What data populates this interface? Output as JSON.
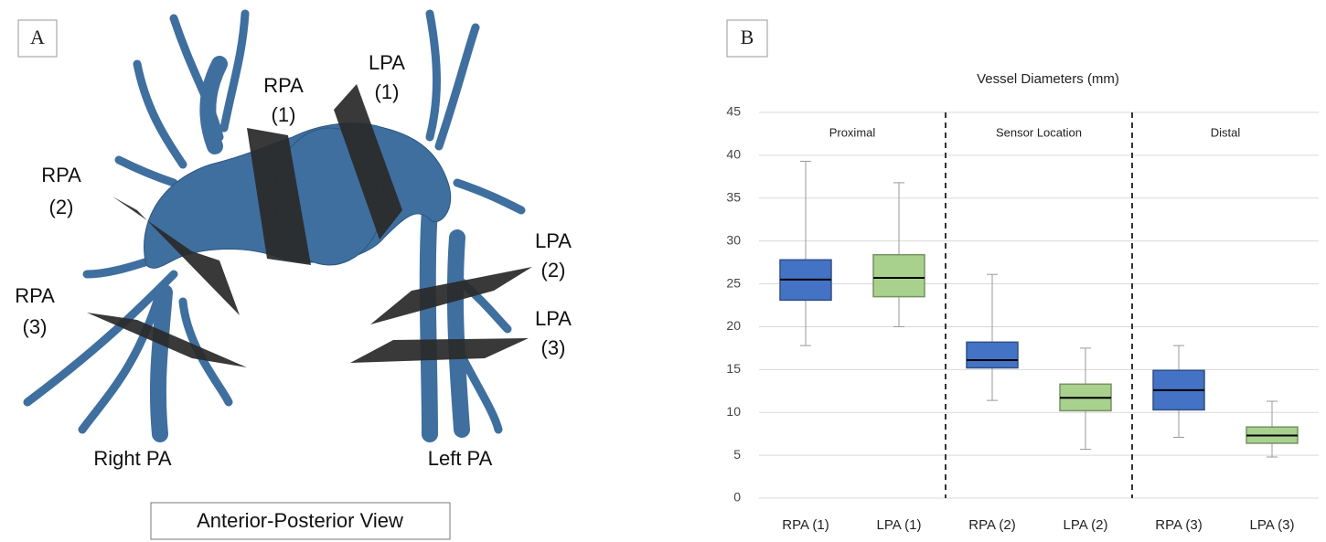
{
  "panel_labels": [
    "A",
    "B"
  ],
  "panel_a": {
    "labels": [
      [
        "RPA",
        "(1)"
      ],
      [
        "LPA",
        "(1)"
      ],
      [
        "RPA",
        "(2)"
      ],
      [
        "LPA",
        "(2)"
      ],
      [
        "RPA",
        "(3)"
      ],
      [
        "LPA",
        "(3)"
      ]
    ],
    "sides": [
      "Right PA",
      "Left PA"
    ],
    "view": "Anterior-Posterior View"
  },
  "chart_data": {
    "type": "box",
    "title": "Vessel Diameters (mm)",
    "categories": [
      "RPA (1)",
      "LPA (1)",
      "RPA (2)",
      "LPA (2)",
      "RPA (3)",
      "LPA (3)"
    ],
    "sections": [
      "Proximal",
      "Sensor Location",
      "Distal"
    ],
    "boxes": [
      {
        "whislo": 17.8,
        "q1": 23.1,
        "med": 25.5,
        "q3": 27.8,
        "whishi": 39.3
      },
      {
        "whislo": 20.0,
        "q1": 23.5,
        "med": 25.7,
        "q3": 28.4,
        "whishi": 36.8
      },
      {
        "whislo": 11.4,
        "q1": 15.2,
        "med": 16.1,
        "q3": 18.2,
        "whishi": 26.1
      },
      {
        "whislo": 5.7,
        "q1": 10.2,
        "med": 11.7,
        "q3": 13.3,
        "whishi": 17.5
      },
      {
        "whislo": 7.1,
        "q1": 10.3,
        "med": 12.6,
        "q3": 14.9,
        "whishi": 17.8
      },
      {
        "whislo": 4.8,
        "q1": 6.4,
        "med": 7.3,
        "q3": 8.3,
        "whishi": 11.3
      }
    ],
    "colors": [
      "#4472c4",
      "#a9d18e",
      "#4472c4",
      "#a9d18e",
      "#4472c4",
      "#a9d18e"
    ],
    "ylim": [
      0,
      45
    ],
    "yticks": [
      0,
      5,
      10,
      15,
      20,
      25,
      30,
      35,
      40,
      45
    ],
    "grid": true
  }
}
